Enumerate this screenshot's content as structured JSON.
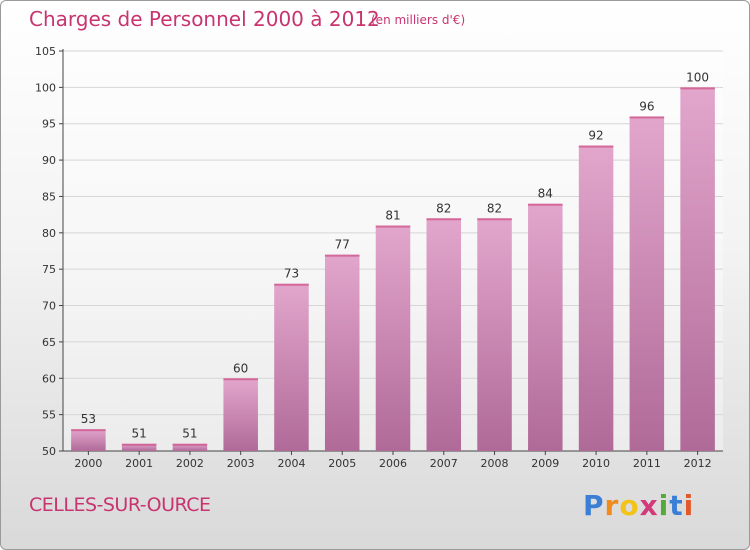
{
  "header": {
    "title": "Charges de Personnel 2000 à 2012",
    "subtitle": "(en milliers d'€)"
  },
  "footer": {
    "commune": "CELLES-SUR-OURCE",
    "brand": [
      "P",
      "r",
      "o",
      "x",
      "i",
      "t",
      "i"
    ],
    "brand_name": "Proxiti"
  },
  "colors": {
    "accent": "#c8346f",
    "bar_top": "#e2a6cc",
    "bar_bottom": "#b06a98",
    "grid": "#d6d6d6"
  },
  "chart_data": {
    "type": "bar",
    "title": "Charges de Personnel 2000 à 2012",
    "subtitle": "(en milliers d'€)",
    "categories": [
      "2000",
      "2001",
      "2002",
      "2003",
      "2004",
      "2005",
      "2006",
      "2007",
      "2008",
      "2009",
      "2010",
      "2011",
      "2012"
    ],
    "values": [
      53,
      51,
      51,
      60,
      73,
      77,
      81,
      82,
      82,
      84,
      92,
      96,
      100
    ],
    "ylim": [
      50,
      105
    ],
    "yticks": [
      50,
      55,
      60,
      65,
      70,
      75,
      80,
      85,
      90,
      95,
      100,
      105
    ],
    "grid": true,
    "xlabel": "",
    "ylabel": ""
  }
}
